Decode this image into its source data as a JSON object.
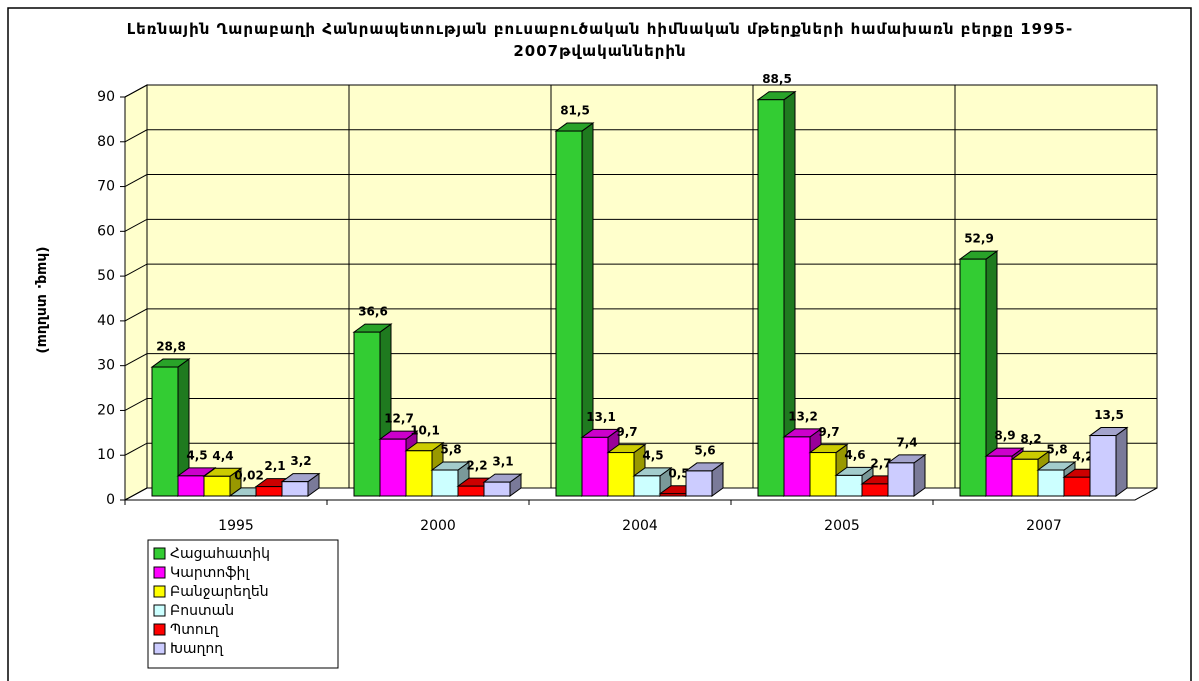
{
  "chart_data": {
    "type": "bar3d",
    "title": "Լեռնային Ղարաբաղի Հանրապետության բուսաբուծական հիմնական մթերքների համախառն բերքը 1995-2007թվականներին",
    "y_label": "(հազ. տոննա)",
    "categories": [
      "1995",
      "2000",
      "2004",
      "2005",
      "2007"
    ],
    "ylim": [
      0,
      90
    ],
    "yticks": [
      0,
      10,
      20,
      30,
      40,
      50,
      60,
      70,
      80,
      90
    ],
    "grid": true,
    "legend": "bottom-left",
    "series": [
      {
        "name": "Հացահատիկ",
        "color": "#33cc33",
        "values": [
          28.8,
          36.6,
          81.5,
          88.5,
          52.9
        ],
        "value_labels": [
          "28,8",
          "36,6",
          "81,5",
          "88,5",
          "52,9"
        ]
      },
      {
        "name": "Կարտոֆիլ",
        "color": "#ff00ff",
        "values": [
          4.5,
          12.7,
          13.1,
          13.2,
          8.9
        ],
        "value_labels": [
          "4,5",
          "12,7",
          "13,1",
          "13,2",
          "8,9"
        ]
      },
      {
        "name": "Բանջարեղեն",
        "color": "#ffff00",
        "values": [
          4.4,
          10.1,
          9.7,
          9.7,
          8.2
        ],
        "value_labels": [
          "4,4",
          "10,1",
          "9,7",
          "9,7",
          "8,2"
        ]
      },
      {
        "name": "Բոստան",
        "color": "#ccffff",
        "values": [
          0.02,
          5.8,
          4.5,
          4.6,
          5.8
        ],
        "value_labels": [
          "0,02",
          "5,8",
          "4,5",
          "4,6",
          "5,8"
        ]
      },
      {
        "name": "Պտուղ",
        "color": "#ff0000",
        "values": [
          2.1,
          2.2,
          0.5,
          2.7,
          4.2
        ],
        "value_labels": [
          "2,1",
          "2,2",
          "0,5",
          "2,7",
          "4,2"
        ]
      },
      {
        "name": "Խաղող",
        "color": "#ccccff",
        "values": [
          3.2,
          3.1,
          5.6,
          7.4,
          13.5
        ],
        "value_labels": [
          "3,2",
          "3,1",
          "5,6",
          "7,4",
          "13,5"
        ]
      }
    ]
  }
}
